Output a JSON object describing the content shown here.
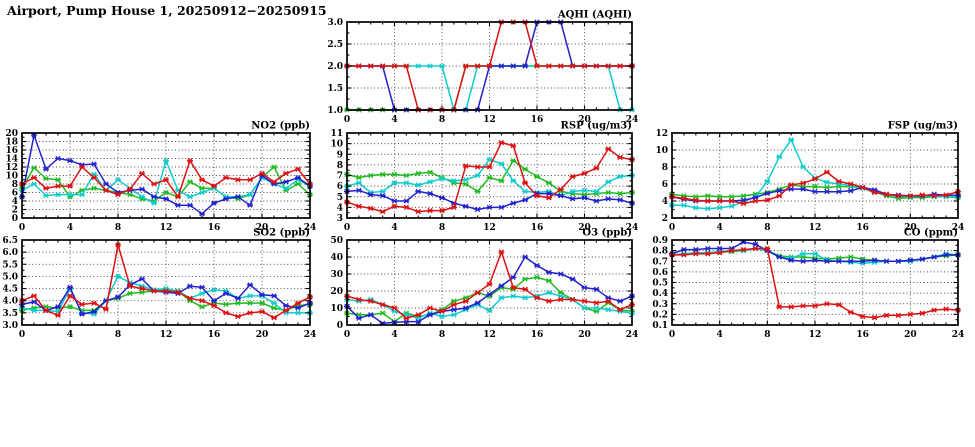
{
  "page": {
    "title": "Airport, Pump House 1, 20250912−20250915"
  },
  "colors": {
    "green": "#22bb22",
    "cyan": "#11cccc",
    "blue": "#2222cc",
    "red": "#dd1111"
  },
  "chart_data": [
    {
      "id": "aqhi",
      "type": "line",
      "title": "AQHI (AQHI)",
      "xlabel": "",
      "ylabel": "",
      "xlim": [
        0,
        24
      ],
      "xticks": [
        0,
        4,
        8,
        12,
        16,
        20,
        24
      ],
      "x_unit": "hour",
      "ylim": [
        1.0,
        3.0
      ],
      "ystep": 0.5,
      "ydecimals": 1,
      "grid": true,
      "legend": "none",
      "series": [
        {
          "name": "green",
          "values": [
            1,
            1,
            1,
            1,
            1,
            1,
            1,
            1,
            1,
            1,
            2,
            2,
            2,
            2,
            2,
            2,
            2,
            2,
            2,
            2,
            2,
            2,
            2,
            2,
            2
          ]
        },
        {
          "name": "cyan",
          "values": [
            2,
            2,
            2,
            2,
            2,
            2,
            2,
            2,
            2,
            1,
            1,
            2,
            2,
            2,
            2,
            2,
            2,
            2,
            2,
            2,
            2,
            2,
            2,
            1,
            1
          ]
        },
        {
          "name": "blue",
          "values": [
            2,
            2,
            2,
            2,
            1,
            1,
            1,
            1,
            1,
            1,
            1,
            1,
            2,
            2,
            2,
            2,
            3,
            3,
            3,
            2,
            2,
            2,
            2,
            2,
            2
          ]
        },
        {
          "name": "red",
          "values": [
            2,
            2,
            2,
            2,
            2,
            2,
            1,
            1,
            1,
            1,
            2,
            2,
            2,
            3,
            3,
            3,
            2,
            2,
            2,
            2,
            2,
            2,
            2,
            2,
            2
          ]
        }
      ]
    },
    {
      "id": "no2",
      "type": "line",
      "title": "NO2 (ppb)",
      "xlabel": "",
      "ylabel": "",
      "xlim": [
        0,
        24
      ],
      "xticks": [
        0,
        4,
        8,
        12,
        16,
        20,
        24
      ],
      "x_unit": "hour",
      "ylim": [
        0,
        20
      ],
      "ystep": 2,
      "ydecimals": 0,
      "grid": true,
      "legend": "none",
      "series": [
        {
          "name": "green",
          "values": [
            7,
            11.8,
            9.3,
            9,
            5,
            6.5,
            7,
            6.5,
            6,
            5.5,
            4.5,
            4,
            6,
            5,
            8.5,
            7,
            7,
            5,
            4.5,
            5.5,
            9.5,
            12,
            6.5,
            8,
            5.5
          ]
        },
        {
          "name": "cyan",
          "values": [
            6.5,
            8,
            5.3,
            5.5,
            5.5,
            5.5,
            10.3,
            6.5,
            9,
            7,
            5,
            3.5,
            13.5,
            6.5,
            5,
            6,
            7,
            5,
            5,
            5.5,
            9.5,
            8,
            7,
            9,
            7.5
          ]
        },
        {
          "name": "blue",
          "values": [
            5,
            19.5,
            11.5,
            14,
            13.5,
            12.5,
            12.7,
            8,
            6,
            6.5,
            6.8,
            5,
            4.5,
            3,
            3,
            1,
            3.5,
            4.5,
            5,
            3,
            10,
            8,
            8.5,
            9.5,
            7.5
          ]
        },
        {
          "name": "red",
          "values": [
            8,
            9.5,
            7,
            7.5,
            7.5,
            12,
            9.5,
            6.5,
            5.5,
            6.8,
            10.5,
            8,
            9,
            5,
            13.5,
            9,
            7.5,
            9.5,
            9,
            9,
            10.5,
            8.5,
            10.5,
            11.5,
            8
          ]
        }
      ]
    },
    {
      "id": "rsp",
      "type": "line",
      "title": "RSP (ug/m3)",
      "xlabel": "",
      "ylabel": "",
      "xlim": [
        0,
        24
      ],
      "xticks": [
        0,
        4,
        8,
        12,
        16,
        20,
        24
      ],
      "x_unit": "hour",
      "ylim": [
        3,
        11
      ],
      "ystep": 1,
      "ydecimals": 0,
      "grid": true,
      "legend": "none",
      "series": [
        {
          "name": "green",
          "values": [
            7.1,
            6.8,
            7.0,
            7.1,
            7.1,
            7.0,
            7.2,
            7.3,
            6.8,
            6.3,
            6.2,
            5.5,
            6.8,
            6.5,
            8.4,
            7.6,
            6.9,
            6.3,
            5.5,
            5.3,
            5.2,
            5.3,
            5.4,
            5.3,
            5.4
          ]
        },
        {
          "name": "cyan",
          "values": [
            6.0,
            6.3,
            5.4,
            5.5,
            6.3,
            6.3,
            6.1,
            6.4,
            6.7,
            6.5,
            6.6,
            7.0,
            8.5,
            8.1,
            6.5,
            5.5,
            5.4,
            5.5,
            5.1,
            5.5,
            5.6,
            5.5,
            6.4,
            6.9,
            7.0
          ]
        },
        {
          "name": "blue",
          "values": [
            5.5,
            5.6,
            5.2,
            5.1,
            4.6,
            4.6,
            5.5,
            5.3,
            4.9,
            4.4,
            4.1,
            3.8,
            4.0,
            4.0,
            4.4,
            4.7,
            5.3,
            5.3,
            5.1,
            4.8,
            4.9,
            4.6,
            4.8,
            4.7,
            4.4
          ]
        },
        {
          "name": "red",
          "values": [
            4.5,
            4.1,
            3.9,
            3.6,
            4.1,
            4.0,
            3.6,
            3.7,
            3.7,
            4.0,
            7.9,
            7.8,
            7.8,
            10.1,
            9.8,
            6.3,
            5.1,
            4.9,
            5.7,
            6.9,
            7.2,
            7.7,
            9.5,
            8.7,
            8.5
          ]
        }
      ]
    },
    {
      "id": "fsp",
      "type": "line",
      "title": "FSP (ug/m3)",
      "xlabel": "",
      "ylabel": "",
      "xlim": [
        0,
        24
      ],
      "xticks": [
        0,
        4,
        8,
        12,
        16,
        20,
        24
      ],
      "x_unit": "hour",
      "ylim": [
        2,
        12
      ],
      "ystep": 2,
      "ydecimals": 0,
      "grid": true,
      "legend": "none",
      "series": [
        {
          "name": "green",
          "values": [
            4.8,
            4.6,
            4.5,
            4.6,
            4.5,
            4.5,
            4.6,
            4.8,
            5.0,
            5.4,
            5.9,
            5.7,
            5.7,
            5.6,
            5.7,
            5.7,
            5.5,
            5.1,
            4.6,
            4.3,
            4.4,
            4.4,
            4.5,
            4.5,
            4.4
          ]
        },
        {
          "name": "cyan",
          "values": [
            3.5,
            3.5,
            3.2,
            3.1,
            3.2,
            3.4,
            3.9,
            4.5,
            6.3,
            9.2,
            11.2,
            8.0,
            6.7,
            6.2,
            6.0,
            5.8,
            5.5,
            5.0,
            4.8,
            4.5,
            4.5,
            4.6,
            4.5,
            4.5,
            4.5
          ]
        },
        {
          "name": "blue",
          "values": [
            4.5,
            4.2,
            4.0,
            4.0,
            4.0,
            4.0,
            4.1,
            4.4,
            4.9,
            5.2,
            5.4,
            5.4,
            5.1,
            5.1,
            5.1,
            5.2,
            5.6,
            5.3,
            4.8,
            4.7,
            4.6,
            4.6,
            4.8,
            4.7,
            4.7
          ]
        },
        {
          "name": "red",
          "values": [
            4.5,
            4.3,
            4.1,
            4.0,
            4.0,
            4.0,
            3.7,
            4.0,
            4.1,
            4.6,
            5.9,
            6.1,
            6.6,
            7.4,
            6.3,
            6.0,
            5.6,
            5.0,
            4.8,
            4.6,
            4.6,
            4.7,
            4.6,
            4.7,
            5.1
          ]
        }
      ]
    },
    {
      "id": "so2",
      "type": "line",
      "title": "SO2 (ppb)",
      "xlabel": "",
      "ylabel": "",
      "xlim": [
        0,
        24
      ],
      "xticks": [
        0,
        4,
        8,
        12,
        16,
        20,
        24
      ],
      "x_unit": "hour",
      "ylim": [
        3.0,
        6.5
      ],
      "ystep": 0.5,
      "ydecimals": 1,
      "grid": true,
      "legend": "none",
      "series": [
        {
          "name": "green",
          "values": [
            3.6,
            3.7,
            3.75,
            3.7,
            3.75,
            3.6,
            3.6,
            4.0,
            4.1,
            4.3,
            4.35,
            4.4,
            4.45,
            4.4,
            4.0,
            3.75,
            3.9,
            3.85,
            3.9,
            3.9,
            3.9,
            3.7,
            3.6,
            3.8,
            3.85
          ]
        },
        {
          "name": "cyan",
          "values": [
            3.7,
            3.6,
            3.6,
            3.55,
            4.5,
            3.5,
            3.45,
            4.0,
            5.0,
            4.75,
            4.6,
            4.45,
            4.5,
            4.4,
            4.1,
            4.3,
            4.45,
            4.4,
            4.1,
            4.2,
            4.2,
            3.9,
            3.5,
            3.5,
            3.5
          ]
        },
        {
          "name": "blue",
          "values": [
            3.85,
            3.95,
            3.6,
            3.75,
            4.55,
            3.45,
            3.55,
            4.0,
            4.15,
            4.65,
            4.9,
            4.4,
            4.35,
            4.3,
            4.6,
            4.55,
            4.0,
            4.3,
            4.1,
            4.65,
            4.25,
            4.2,
            3.8,
            3.7,
            3.9
          ]
        },
        {
          "name": "red",
          "values": [
            4.0,
            4.2,
            3.6,
            3.4,
            4.2,
            3.85,
            3.9,
            3.65,
            6.3,
            4.6,
            4.5,
            4.4,
            4.4,
            4.35,
            4.1,
            4.0,
            3.8,
            3.5,
            3.35,
            3.5,
            3.55,
            3.3,
            3.6,
            3.9,
            4.15
          ]
        }
      ]
    },
    {
      "id": "o3",
      "type": "line",
      "title": "O3 (ppb)",
      "xlabel": "",
      "ylabel": "",
      "xlim": [
        0,
        24
      ],
      "xticks": [
        0,
        4,
        8,
        12,
        16,
        20,
        24
      ],
      "x_unit": "hour",
      "ylim": [
        0,
        50
      ],
      "ystep": 10,
      "ydecimals": 0,
      "grid": true,
      "legend": "none",
      "series": [
        {
          "name": "green",
          "values": [
            7,
            6,
            6,
            7,
            2,
            7,
            5,
            6,
            9,
            14,
            16,
            19,
            17,
            22,
            21,
            27,
            28,
            26,
            19,
            15,
            10,
            8,
            13,
            9,
            8
          ]
        },
        {
          "name": "cyan",
          "values": [
            15,
            14,
            15,
            12,
            8,
            6,
            4,
            7,
            5,
            6,
            9,
            12,
            8.5,
            16,
            17,
            16,
            17,
            19,
            17,
            15,
            10,
            10,
            9,
            8,
            7
          ]
        },
        {
          "name": "blue",
          "values": [
            11,
            4,
            6,
            1,
            1.5,
            2,
            2,
            6,
            8,
            9,
            10,
            13,
            18,
            23,
            28,
            40,
            35,
            31,
            30,
            27,
            22,
            21,
            16,
            14,
            17
          ]
        },
        {
          "name": "red",
          "values": [
            17,
            15,
            14,
            12,
            10,
            4,
            6,
            10,
            8,
            12,
            14,
            19,
            24,
            43,
            22,
            21,
            16,
            14,
            15,
            15,
            14,
            13,
            14,
            9,
            12
          ]
        }
      ]
    },
    {
      "id": "co",
      "type": "line",
      "title": "CO (ppm)",
      "xlabel": "",
      "ylabel": "",
      "xlim": [
        0,
        24
      ],
      "xticks": [
        0,
        4,
        8,
        12,
        16,
        20,
        24
      ],
      "x_unit": "hour",
      "ylim": [
        0.1,
        0.9
      ],
      "ystep": 0.1,
      "ydecimals": 1,
      "grid": true,
      "legend": "none",
      "series": [
        {
          "name": "green",
          "values": [
            0.76,
            0.77,
            0.78,
            0.78,
            0.79,
            0.79,
            0.8,
            0.82,
            0.8,
            0.75,
            0.74,
            0.74,
            0.73,
            0.72,
            0.73,
            0.74,
            0.72,
            0.71,
            0.7,
            0.7,
            0.71,
            0.72,
            0.74,
            0.75,
            0.76
          ]
        },
        {
          "name": "cyan",
          "values": [
            0.76,
            0.77,
            0.78,
            0.78,
            0.79,
            0.8,
            0.8,
            0.82,
            0.8,
            0.74,
            0.73,
            0.77,
            0.77,
            0.71,
            0.7,
            0.69,
            0.68,
            0.69,
            0.7,
            0.7,
            0.7,
            0.72,
            0.74,
            0.77,
            0.76
          ]
        },
        {
          "name": "blue",
          "values": [
            0.77,
            0.81,
            0.81,
            0.82,
            0.82,
            0.82,
            0.88,
            0.86,
            0.8,
            0.74,
            0.71,
            0.7,
            0.71,
            0.7,
            0.7,
            0.7,
            0.7,
            0.71,
            0.7,
            0.7,
            0.71,
            0.72,
            0.74,
            0.76,
            0.76
          ]
        },
        {
          "name": "red",
          "values": [
            0.76,
            0.76,
            0.77,
            0.77,
            0.78,
            0.8,
            0.81,
            0.82,
            0.82,
            0.27,
            0.27,
            0.28,
            0.28,
            0.3,
            0.29,
            0.22,
            0.18,
            0.17,
            0.19,
            0.19,
            0.2,
            0.21,
            0.24,
            0.25,
            0.24
          ]
        }
      ]
    }
  ]
}
